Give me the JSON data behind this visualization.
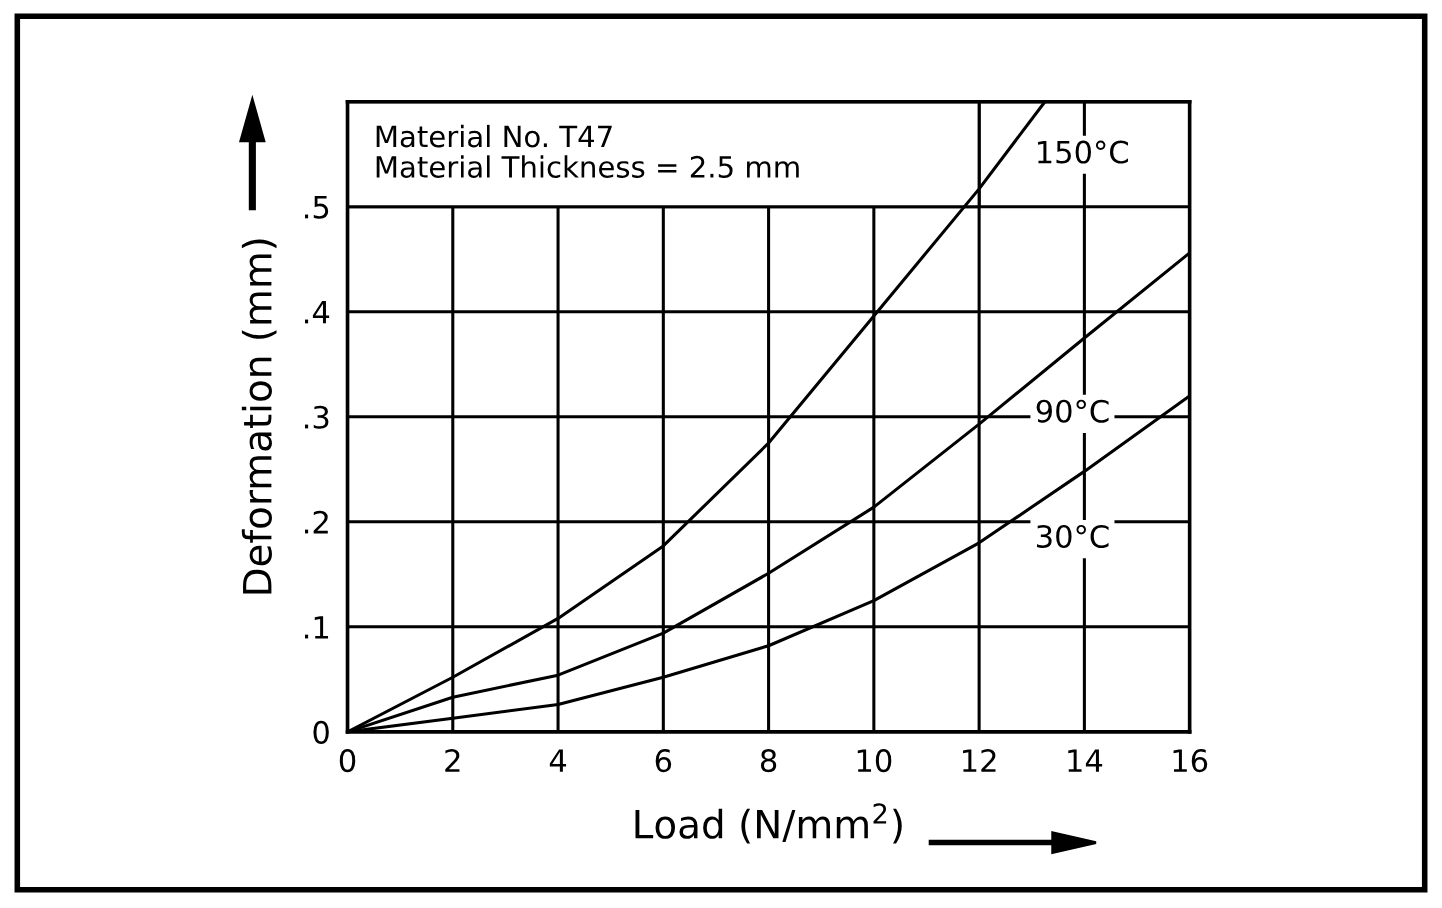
{
  "chart_data": {
    "type": "line",
    "xlabel": "Load (N/mm$^{2}$)",
    "ylabel": "Deformation (mm)",
    "x": [
      0,
      2,
      4,
      6,
      8,
      10,
      12,
      13.25
    ],
    "series": [
      {
        "name": "150°C",
        "color": "#000000",
        "values": [
          0,
          0.052,
          0.108,
          0.177,
          0.275,
          0.396,
          0.517,
          0.6
        ]
      },
      {
        "name": "90°C",
        "color": "#000000",
        "x": [
          0,
          2,
          4,
          6,
          8,
          10,
          12,
          14,
          16
        ],
        "values": [
          0,
          0.033,
          0.054,
          0.094,
          0.151,
          0.214,
          0.293,
          0.375,
          0.456
        ]
      },
      {
        "name": "30°C",
        "color": "#000000",
        "x": [
          0,
          2,
          4,
          6,
          8,
          10,
          12,
          14,
          16
        ],
        "values": [
          0,
          0.013,
          0.026,
          0.052,
          0.082,
          0.125,
          0.18,
          0.248,
          0.32
        ]
      }
    ],
    "xlim": [
      0,
      16
    ],
    "xticks": [
      0,
      2,
      4,
      6,
      8,
      10,
      12,
      14,
      16
    ],
    "ylim": [
      0,
      0.6
    ],
    "yticks": [
      0,
      {
        "value": 0.1,
        "label": ".1"
      },
      {
        "value": 0.2,
        "label": ".2"
      },
      {
        "value": 0.3,
        "label": ".3"
      },
      {
        "value": 0.4,
        "label": ".4"
      },
      {
        "value": 0.5,
        "label": ".5"
      },
      {
        "value": 0.6,
        "label": null
      }
    ],
    "grid": true,
    "marker": "none",
    "line_style": "solid",
    "annotations": [
      "Material No. T47\nMaterial Thickness = 2.5 mm"
    ]
  }
}
